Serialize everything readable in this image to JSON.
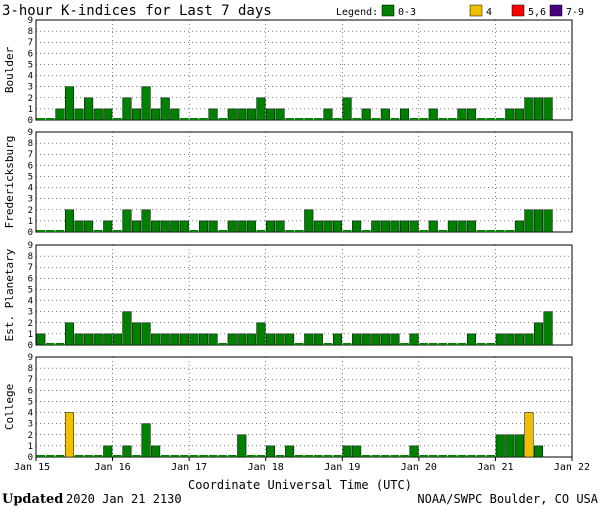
{
  "chart_data": {
    "type": "bar",
    "title": "3-hour K-indices for Last 7 days",
    "legend": {
      "title": "Legend:",
      "items": [
        {
          "label": "0-3",
          "color": "#008000"
        },
        {
          "label": "4",
          "color": "#f0c000"
        },
        {
          "label": "5,6",
          "color": "#ff0000"
        },
        {
          "label": "7-9",
          "color": "#4b0082"
        }
      ]
    },
    "ylim": [
      0,
      9
    ],
    "yticks": [
      "0",
      "1",
      "2",
      "3",
      "4",
      "5",
      "6",
      "7",
      "8",
      "9"
    ],
    "x_ticks": [
      "Jan 15",
      "Jan 16",
      "Jan 17",
      "Jan 18",
      "Jan 19",
      "Jan 20",
      "Jan 21",
      "Jan 22"
    ],
    "xlabel": "Coordinate Universal Time (UTC)",
    "interval_hours": 3,
    "series": [
      {
        "name": "Boulder",
        "values": [
          0,
          0,
          1,
          3,
          1,
          2,
          1,
          1,
          0,
          2,
          1,
          3,
          1,
          2,
          1,
          0,
          0,
          0,
          1,
          0,
          1,
          1,
          1,
          2,
          1,
          1,
          0,
          0,
          0,
          0,
          1,
          0,
          2,
          0,
          1,
          0,
          1,
          0,
          1,
          0,
          0,
          1,
          0,
          0,
          1,
          1,
          0,
          0,
          0,
          1,
          1,
          2,
          2,
          2
        ]
      },
      {
        "name": "Fredericksburg",
        "values": [
          0,
          0,
          0,
          2,
          1,
          1,
          0,
          1,
          0,
          2,
          1,
          2,
          1,
          1,
          1,
          1,
          0,
          1,
          1,
          0,
          1,
          1,
          1,
          0,
          1,
          1,
          0,
          0,
          2,
          1,
          1,
          1,
          0,
          1,
          0,
          1,
          1,
          1,
          1,
          1,
          0,
          1,
          0,
          1,
          1,
          1,
          0,
          0,
          0,
          0,
          1,
          2,
          2,
          2
        ]
      },
      {
        "name": "Est. Planetary",
        "values": [
          1,
          0,
          0,
          2,
          1,
          1,
          1,
          1,
          1,
          3,
          2,
          2,
          1,
          1,
          1,
          1,
          1,
          1,
          1,
          0,
          1,
          1,
          1,
          2,
          1,
          1,
          1,
          0,
          1,
          1,
          0,
          1,
          0,
          1,
          1,
          1,
          1,
          1,
          0,
          1,
          0,
          0,
          0,
          0,
          0,
          1,
          0,
          0,
          1,
          1,
          1,
          1,
          2,
          3
        ]
      },
      {
        "name": "College",
        "values": [
          0,
          0,
          0,
          4,
          0,
          0,
          0,
          1,
          0,
          1,
          0,
          3,
          1,
          0,
          0,
          0,
          0,
          0,
          0,
          0,
          0,
          2,
          0,
          0,
          1,
          0,
          1,
          0,
          0,
          0,
          0,
          0,
          1,
          1,
          0,
          0,
          0,
          0,
          0,
          1,
          0,
          0,
          0,
          0,
          0,
          0,
          0,
          0,
          2,
          2,
          2,
          4,
          1
        ]
      }
    ]
  },
  "footer": {
    "updated_label": "Updated",
    "updated_value": "2020 Jan 21 2130",
    "source": "NOAA/SWPC Boulder, CO USA"
  }
}
